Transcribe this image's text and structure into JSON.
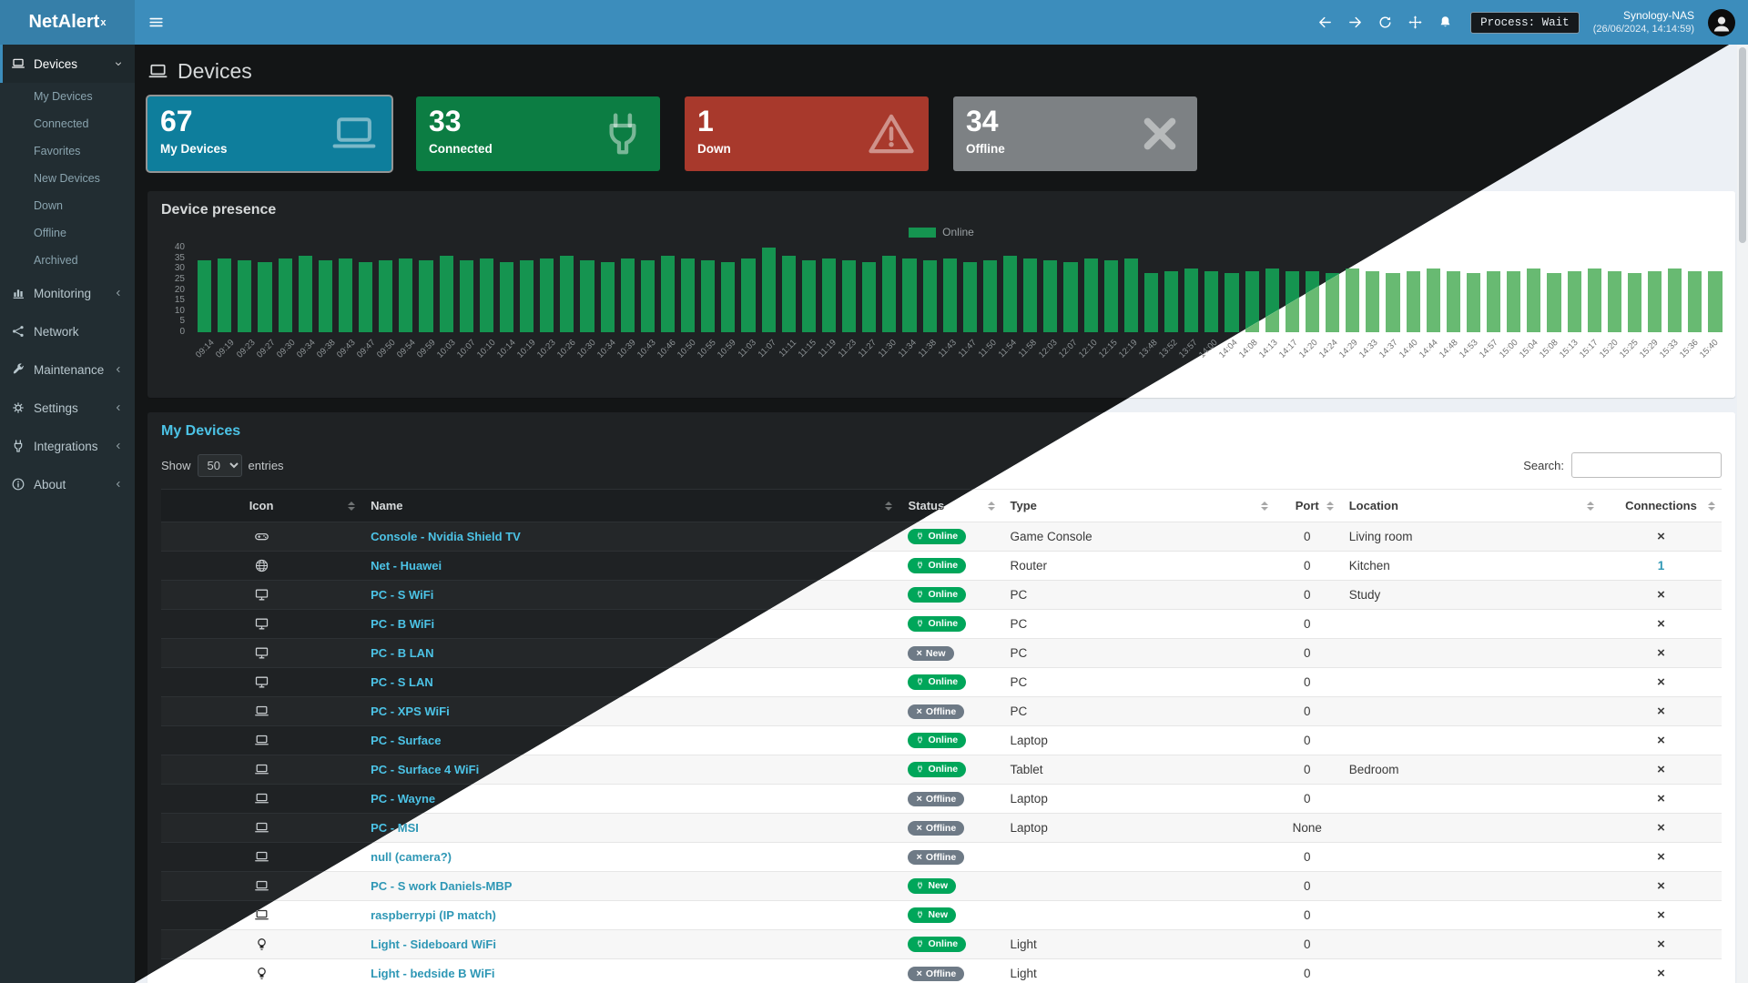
{
  "header": {
    "logo": "NetAlert",
    "logo_sup": "x",
    "process_label": "Process: Wait",
    "host": "Synology-NAS",
    "datetime": "(26/06/2024, 14:14:59)",
    "buttons": [
      {
        "name": "back",
        "icon": "arrow-left"
      },
      {
        "name": "forward",
        "icon": "arrow-right"
      },
      {
        "name": "refresh",
        "icon": "refresh"
      },
      {
        "name": "move",
        "icon": "move"
      },
      {
        "name": "notifications",
        "icon": "bell"
      }
    ]
  },
  "sidebar": {
    "items": [
      {
        "label": "Devices",
        "icon": "laptop",
        "state": "expanded",
        "active": true,
        "children": [
          "My Devices",
          "Connected",
          "Favorites",
          "New Devices",
          "Down",
          "Offline",
          "Archived"
        ]
      },
      {
        "label": "Monitoring",
        "icon": "chart",
        "state": "collapsed"
      },
      {
        "label": "Network",
        "icon": "network",
        "state": "none"
      },
      {
        "label": "Maintenance",
        "icon": "wrench",
        "state": "collapsed"
      },
      {
        "label": "Settings",
        "icon": "gear",
        "state": "collapsed"
      },
      {
        "label": "Integrations",
        "icon": "plug",
        "state": "collapsed"
      },
      {
        "label": "About",
        "icon": "info",
        "state": "collapsed"
      }
    ]
  },
  "page": {
    "title": "Devices",
    "icon": "laptop"
  },
  "cards": [
    {
      "value": "67",
      "label": "My Devices",
      "color": "#0e7e9c",
      "icon": "laptop",
      "selected": true
    },
    {
      "value": "33",
      "label": "Connected",
      "color": "#0c7d43",
      "icon": "plug",
      "selected": false
    },
    {
      "value": "1",
      "label": "Down",
      "color": "#a8392c",
      "icon": "warning",
      "selected": false
    },
    {
      "value": "34",
      "label": "Offline",
      "color": "#7d8184",
      "icon": "xmark",
      "selected": false
    }
  ],
  "presence": {
    "title": "Device presence",
    "legend": "Online"
  },
  "chart_data": {
    "type": "bar",
    "title": "Device presence",
    "legend_position": "top-center",
    "xlabel": "",
    "ylabel": "",
    "ylim": [
      0,
      40
    ],
    "yticks": [
      0,
      5,
      10,
      15,
      20,
      25,
      30,
      35,
      40
    ],
    "x": [
      "09:14",
      "09:19",
      "09:23",
      "09:27",
      "09:30",
      "09:34",
      "09:38",
      "09:43",
      "09:47",
      "09:50",
      "09:54",
      "09:59",
      "10:03",
      "10:07",
      "10:10",
      "10:14",
      "10:19",
      "10:23",
      "10:26",
      "10:30",
      "10:34",
      "10:39",
      "10:43",
      "10:46",
      "10:50",
      "10:55",
      "10:59",
      "11:03",
      "11:07",
      "11:11",
      "11:15",
      "11:19",
      "11:23",
      "11:27",
      "11:30",
      "11:34",
      "11:38",
      "11:43",
      "11:47",
      "11:50",
      "11:54",
      "11:58",
      "12:03",
      "12:07",
      "12:10",
      "12:15",
      "12:19",
      "13:48",
      "13:52",
      "13:57",
      "14:00",
      "14:04",
      "14:08",
      "14:13",
      "14:17",
      "14:20",
      "14:24",
      "14:29",
      "14:33",
      "14:37",
      "14:40",
      "14:44",
      "14:48",
      "14:53",
      "14:57",
      "15:00",
      "15:04",
      "15:08",
      "15:13",
      "15:17",
      "15:20",
      "15:25",
      "15:29",
      "15:33",
      "15:36",
      "15:40"
    ],
    "series": [
      {
        "name": "Online",
        "values": [
          34,
          35,
          34,
          33,
          35,
          36,
          34,
          35,
          33,
          34,
          35,
          34,
          36,
          34,
          35,
          33,
          34,
          35,
          36,
          34,
          33,
          35,
          34,
          36,
          35,
          34,
          33,
          35,
          40,
          36,
          34,
          35,
          34,
          33,
          36,
          35,
          34,
          35,
          33,
          34,
          36,
          35,
          34,
          33,
          35,
          34,
          35,
          28,
          29,
          30,
          29,
          28,
          29,
          30,
          29,
          29,
          28,
          30,
          29,
          28,
          29,
          30,
          29,
          28,
          29,
          29,
          30,
          28,
          29,
          30,
          29,
          28,
          29,
          30,
          29,
          29
        ]
      }
    ]
  },
  "devices_table": {
    "title": "My Devices",
    "show_label": "Show",
    "entries_label": "entries",
    "page_size": "50",
    "search_label": "Search:",
    "columns": [
      {
        "key": "icon",
        "label": "Icon"
      },
      {
        "key": "name",
        "label": "Name"
      },
      {
        "key": "status",
        "label": "Status"
      },
      {
        "key": "type",
        "label": "Type"
      },
      {
        "key": "port",
        "label": "Port"
      },
      {
        "key": "location",
        "label": "Location"
      },
      {
        "key": "connections",
        "label": "Connections"
      }
    ],
    "rows": [
      {
        "icon": "gamepad",
        "name": "Console - Nvidia Shield TV",
        "status": {
          "label": "Online",
          "on": true
        },
        "type": "Game Console",
        "port": "0",
        "location": "Living room",
        "connections": {
          "x": true
        }
      },
      {
        "icon": "globe",
        "name": "Net - Huawei",
        "status": {
          "label": "Online",
          "on": true
        },
        "type": "Router",
        "port": "0",
        "location": "Kitchen",
        "connections": {
          "link": "1"
        }
      },
      {
        "icon": "desktop",
        "name": "PC - S WiFi",
        "status": {
          "label": "Online",
          "on": true
        },
        "type": "PC",
        "port": "0",
        "location": "Study",
        "connections": {
          "x": true
        }
      },
      {
        "icon": "desktop",
        "name": "PC - B WiFi",
        "status": {
          "label": "Online",
          "on": true
        },
        "type": "PC",
        "port": "0",
        "location": "",
        "connections": {
          "x": true
        }
      },
      {
        "icon": "desktop",
        "name": "PC - B LAN",
        "status": {
          "label": "New",
          "on": false
        },
        "type": "PC",
        "port": "0",
        "location": "",
        "connections": {
          "x": true
        }
      },
      {
        "icon": "desktop",
        "name": "PC - S LAN",
        "status": {
          "label": "Online",
          "on": true
        },
        "type": "PC",
        "port": "0",
        "location": "",
        "connections": {
          "x": true
        }
      },
      {
        "icon": "laptop",
        "name": "PC - XPS WiFi",
        "status": {
          "label": "Offline",
          "on": false
        },
        "type": "PC",
        "port": "0",
        "location": "",
        "connections": {
          "x": true
        }
      },
      {
        "icon": "laptop",
        "name": "PC - Surface",
        "status": {
          "label": "Online",
          "on": true
        },
        "type": "Laptop",
        "port": "0",
        "location": "",
        "connections": {
          "x": true
        }
      },
      {
        "icon": "laptop",
        "name": "PC - Surface 4 WiFi",
        "status": {
          "label": "Online",
          "on": true
        },
        "type": "Tablet",
        "port": "0",
        "location": "Bedroom",
        "connections": {
          "x": true
        }
      },
      {
        "icon": "laptop",
        "name": "PC - Wayne",
        "status": {
          "label": "Offline",
          "on": false
        },
        "type": "Laptop",
        "port": "0",
        "location": "",
        "connections": {
          "x": true
        }
      },
      {
        "icon": "laptop",
        "name": "PC - MSI",
        "status": {
          "label": "Offline",
          "on": false
        },
        "type": "Laptop",
        "port": "None",
        "location": "",
        "connections": {
          "x": true
        }
      },
      {
        "icon": "laptop",
        "name": "null (camera?)",
        "status": {
          "label": "Offline",
          "on": false
        },
        "type": "",
        "port": "0",
        "location": "",
        "connections": {
          "x": true
        }
      },
      {
        "icon": "laptop",
        "name": "PC - S work Daniels-MBP",
        "status": {
          "label": "New",
          "on": true
        },
        "type": "",
        "port": "0",
        "location": "",
        "connections": {
          "x": true
        }
      },
      {
        "icon": "laptop",
        "name": "raspberrypi (IP match)",
        "status": {
          "label": "New",
          "on": true
        },
        "type": "",
        "port": "0",
        "location": "",
        "connections": {
          "x": true
        }
      },
      {
        "icon": "lightbulb",
        "name": "Light - Sideboard WiFi",
        "status": {
          "label": "Online",
          "on": true
        },
        "type": "Light",
        "port": "0",
        "location": "",
        "connections": {
          "x": true
        }
      },
      {
        "icon": "lightbulb",
        "name": "Light - bedside B WiFi",
        "status": {
          "label": "Offline",
          "on": false
        },
        "type": "Light",
        "port": "0",
        "location": "",
        "connections": {
          "x": true
        }
      }
    ]
  },
  "colors": {
    "header_blue": "#3c8dbc",
    "online_badge": "#00a65a",
    "offline_badge": "#6e7a86",
    "bar_dark_theme": "#159450",
    "bar_light_theme": "#68ba72"
  }
}
